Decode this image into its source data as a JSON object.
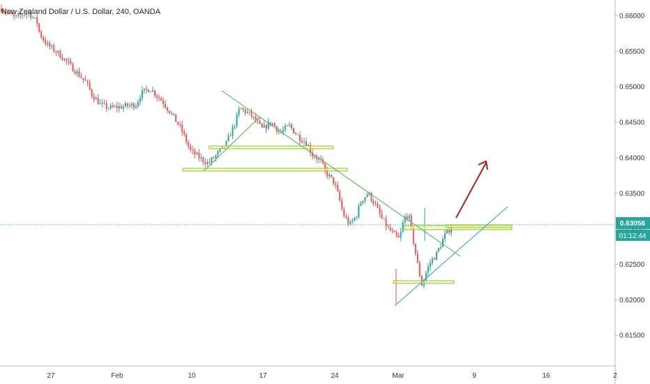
{
  "header": {
    "title": "New Zealand Dollar / U.S. Dollar, 240, OANDA"
  },
  "price_label": {
    "price": "0.63056",
    "countdown": "01:12:44"
  },
  "colors": {
    "up": "#26a69a",
    "down": "#ef5350",
    "trend_down": "#4caf50",
    "trend_up": "#2196f3",
    "arrow": "#b71c1c",
    "zone": "#f0f080",
    "price_line": "#26a69a"
  },
  "chart_data": {
    "type": "candlestick",
    "title": "New Zealand Dollar / U.S. Dollar, 240, OANDA",
    "ylim": [
      0.6107,
      0.6622
    ],
    "y_ticks": [
      "0.66000",
      "0.65500",
      "0.65000",
      "0.64500",
      "0.64000",
      "0.63500",
      "0.63000",
      "0.62500",
      "0.62000",
      "0.61500"
    ],
    "x_ticks": [
      "27",
      "Feb",
      "10",
      "17",
      "24",
      "Mar",
      "9",
      "16",
      "2"
    ],
    "current_price": 0.63056,
    "path_points": [
      [
        0,
        0.661
      ],
      [
        0.03,
        0.6597
      ],
      [
        0.06,
        0.6605
      ],
      [
        0.08,
        0.659
      ],
      [
        0.085,
        0.6575
      ],
      [
        0.1,
        0.656
      ],
      [
        0.13,
        0.6545
      ],
      [
        0.16,
        0.6525
      ],
      [
        0.19,
        0.6505
      ],
      [
        0.2,
        0.649
      ],
      [
        0.22,
        0.6475
      ],
      [
        0.24,
        0.647
      ],
      [
        0.27,
        0.6472
      ],
      [
        0.3,
        0.6475
      ],
      [
        0.31,
        0.649
      ],
      [
        0.33,
        0.6498
      ],
      [
        0.36,
        0.6478
      ],
      [
        0.38,
        0.646
      ],
      [
        0.4,
        0.644
      ],
      [
        0.42,
        0.641
      ],
      [
        0.44,
        0.64
      ],
      [
        0.46,
        0.6392
      ],
      [
        0.48,
        0.6405
      ],
      [
        0.5,
        0.642
      ],
      [
        0.52,
        0.645
      ],
      [
        0.53,
        0.647
      ],
      [
        0.555,
        0.646
      ],
      [
        0.58,
        0.644
      ],
      [
        0.6,
        0.645
      ],
      [
        0.62,
        0.6435
      ],
      [
        0.64,
        0.6445
      ],
      [
        0.66,
        0.643
      ],
      [
        0.68,
        0.642
      ],
      [
        0.69,
        0.6405
      ],
      [
        0.71,
        0.6395
      ],
      [
        0.72,
        0.638
      ],
      [
        0.74,
        0.6365
      ],
      [
        0.75,
        0.6345
      ],
      [
        0.76,
        0.632
      ],
      [
        0.775,
        0.6305
      ],
      [
        0.79,
        0.632
      ],
      [
        0.8,
        0.634
      ],
      [
        0.815,
        0.635
      ],
      [
        0.83,
        0.6335
      ],
      [
        0.845,
        0.6315
      ],
      [
        0.86,
        0.63
      ],
      [
        0.875,
        0.629
      ],
      [
        0.885,
        0.6285
      ],
      [
        0.895,
        0.6315
      ],
      [
        0.905,
        0.632
      ],
      [
        0.915,
        0.6285
      ],
      [
        0.925,
        0.625
      ],
      [
        0.935,
        0.622
      ],
      [
        0.945,
        0.624
      ],
      [
        0.955,
        0.6255
      ],
      [
        0.965,
        0.6262
      ],
      [
        0.975,
        0.6275
      ],
      [
        0.985,
        0.629
      ],
      [
        0.995,
        0.6298
      ],
      [
        1.0,
        0.63056
      ]
    ],
    "zones": [
      {
        "x0": 0.43,
        "x1": 0.746,
        "y": 0.64115
      },
      {
        "x0": 0.378,
        "x1": 0.764,
        "y": 0.6379
      },
      {
        "x0": 0.875,
        "x1": 0.853,
        "y": 0.62225
      },
      {
        "x0": 0.9,
        "x1": 1.145,
        "y": 0.62995
      }
    ]
  }
}
